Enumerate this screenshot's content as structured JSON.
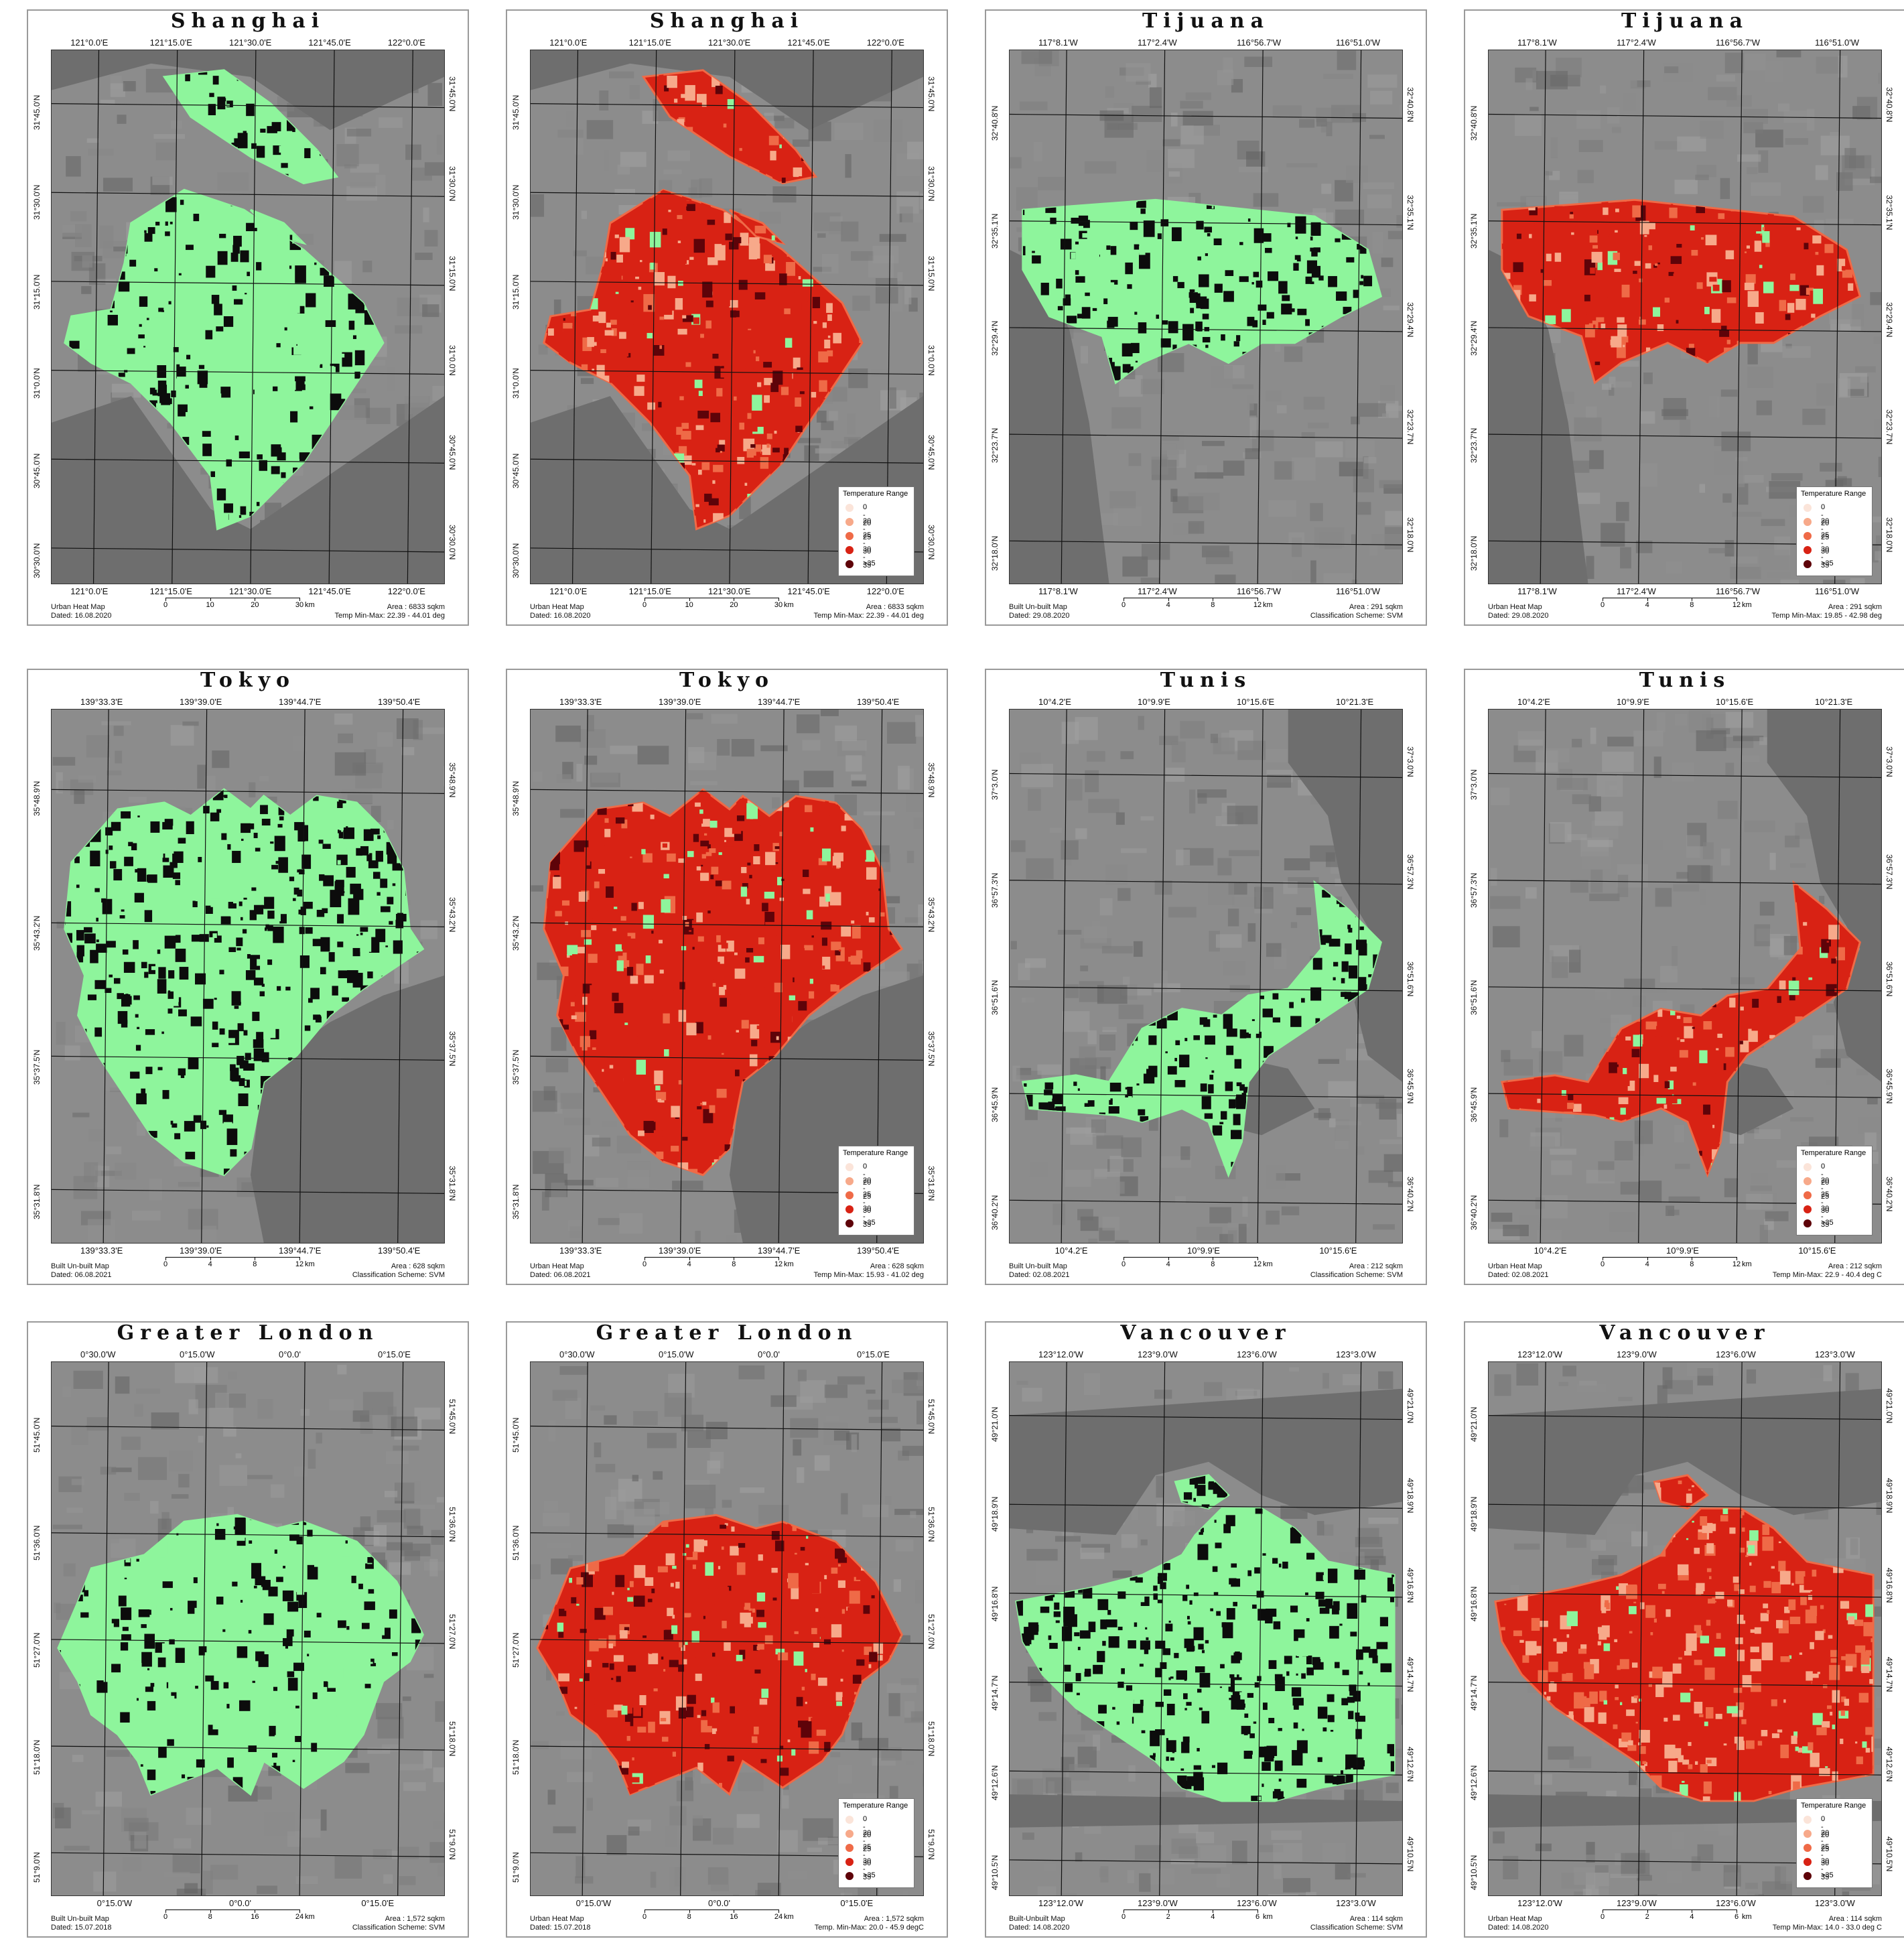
{
  "colors": {
    "unbuilt": "#8ef59c",
    "built": "#0c0c0c",
    "heat": [
      "#fbe4d9",
      "#f7a98a",
      "#ef6a47",
      "#d82214",
      "#5e0309"
    ],
    "water": "#6e6e6e",
    "land": "#8c8c8c"
  },
  "panels": [
    {
      "title": "Shanghai",
      "top_labels": [
        "121°0.0'E",
        "121°15.0'E",
        "121°30.0'E",
        "121°45.0'E",
        "122°0.0'E"
      ],
      "bottom_labels": [
        "121°0.0'E",
        "121°15.0'E",
        "121°30.0'E",
        "121°45.0'E",
        "122°0.0'E"
      ],
      "left_labels": [
        "31°45.0'N",
        "31°30.0'N",
        "31°15.0'N",
        "31°0.0'N",
        "30°45.0'N",
        "30°30.0'N"
      ],
      "right_labels": [
        "31°45.0'N",
        "31°30.0'N",
        "31°15.0'N",
        "31°0.0'N",
        "30°45.0'N",
        "30°30.0'N"
      ],
      "foot_left": [
        "Urban Heat Map",
        "Dated: 16.08.2020"
      ],
      "foot_right": [
        "Area : 6833 sqkm",
        "Temp Min-Max: 22.39 - 44.01 deg"
      ],
      "scale": [
        "0",
        "10",
        "20",
        "30"
      ],
      "scale_unit": "km"
    },
    {
      "title": "Shanghai",
      "top_labels": [
        "121°0.0'E",
        "121°15.0'E",
        "121°30.0'E",
        "121°45.0'E",
        "122°0.0'E"
      ],
      "bottom_labels": [
        "121°0.0'E",
        "121°15.0'E",
        "121°30.0'E",
        "121°45.0'E",
        "122°0.0'E"
      ],
      "left_labels": [
        "31°45.0'N",
        "31°30.0'N",
        "31°15.0'N",
        "31°0.0'N",
        "30°45.0'N",
        "30°30.0'N"
      ],
      "right_labels": [
        "31°45.0'N",
        "31°30.0'N",
        "31°15.0'N",
        "31°0.0'N",
        "30°45.0'N",
        "30°30.0'N"
      ],
      "foot_left": [
        "Urban Heat Map",
        "Dated: 16.08.2020"
      ],
      "foot_right": [
        "Area : 6833 sqkm",
        "Temp Min-Max: 22.39 - 44.01 deg"
      ],
      "scale": [
        "0",
        "10",
        "20",
        "30"
      ],
      "scale_unit": "km",
      "legend": {
        "title": "Temperature Range",
        "items": [
          "0 - 20",
          "20 - 25",
          "25 - 30",
          "30 - 35",
          ">35"
        ]
      }
    },
    {
      "title": "Tijuana",
      "top_labels": [
        "117°8.1'W",
        "117°2.4'W",
        "116°56.7'W",
        "116°51.0'W"
      ],
      "bottom_labels": [
        "117°8.1'W",
        "117°2.4'W",
        "116°56.7'W",
        "116°51.0'W"
      ],
      "left_labels": [
        "32°40.8'N",
        "32°35.1'N",
        "32°29.4'N",
        "32°23.7'N",
        "32°18.0'N"
      ],
      "right_labels": [
        "32°40.8'N",
        "32°35.1'N",
        "32°29.4'N",
        "32°23.7'N",
        "32°18.0'N"
      ],
      "foot_left": [
        "Built Un-built Map",
        "Dated: 29.08.2020"
      ],
      "foot_right": [
        "Area : 291 sqkm",
        "Classification Scheme: SVM"
      ],
      "scale": [
        "0",
        "4",
        "8",
        "12"
      ],
      "scale_unit": "km"
    },
    {
      "title": "Tijuana",
      "top_labels": [
        "117°8.1'W",
        "117°2.4'W",
        "116°56.7'W",
        "116°51.0'W"
      ],
      "bottom_labels": [
        "117°8.1'W",
        "117°2.4'W",
        "116°56.7'W",
        "116°51.0'W"
      ],
      "left_labels": [
        "32°40.8'N",
        "32°35.1'N",
        "32°29.4'N",
        "32°23.7'N",
        "32°18.0'N"
      ],
      "right_labels": [
        "32°40.8'N",
        "32°35.1'N",
        "32°29.4'N",
        "32°23.7'N",
        "32°18.0'N"
      ],
      "foot_left": [
        "Urban Heat Map",
        "Dated: 29.08.2020"
      ],
      "foot_right": [
        "Area : 291 sqkm",
        "Temp Min-Max: 19.85 - 42.98 deg"
      ],
      "scale": [
        "0",
        "4",
        "8",
        "12"
      ],
      "scale_unit": "km",
      "legend": {
        "title": "Temperature Range",
        "items": [
          "0 - 20",
          "20 - 25",
          "25 - 30",
          "30 - 35",
          ">35"
        ]
      }
    },
    {
      "title": "Tokyo",
      "top_labels": [
        "139°33.3'E",
        "139°39.0'E",
        "139°44.7'E",
        "139°50.4'E"
      ],
      "bottom_labels": [
        "139°33.3'E",
        "139°39.0'E",
        "139°44.7'E",
        "139°50.4'E"
      ],
      "left_labels": [
        "35°48.9'N",
        "35°43.2'N",
        "35°37.5'N",
        "35°31.8'N"
      ],
      "right_labels": [
        "35°48.9'N",
        "35°43.2'N",
        "35°37.5'N",
        "35°31.8'N"
      ],
      "foot_left": [
        "Built Un-built Map",
        "Dated: 06.08.2021"
      ],
      "foot_right": [
        "Area : 628 sqkm",
        "Classification Scheme: SVM"
      ],
      "scale": [
        "0",
        "4",
        "8",
        "12"
      ],
      "scale_unit": "km"
    },
    {
      "title": "Tokyo",
      "top_labels": [
        "139°33.3'E",
        "139°39.0'E",
        "139°44.7'E",
        "139°50.4'E"
      ],
      "bottom_labels": [
        "139°33.3'E",
        "139°39.0'E",
        "139°44.7'E",
        "139°50.4'E"
      ],
      "left_labels": [
        "35°48.9'N",
        "35°43.2'N",
        "35°37.5'N",
        "35°31.8'N"
      ],
      "right_labels": [
        "35°48.9'N",
        "35°43.2'N",
        "35°37.5'N",
        "35°31.8'N"
      ],
      "foot_left": [
        "Urban Heat Map",
        "Dated: 06.08.2021"
      ],
      "foot_right": [
        "Area : 628 sqkm",
        "Temp Min-Max: 15.93 - 41.02 deg"
      ],
      "scale": [
        "0",
        "4",
        "8",
        "12"
      ],
      "scale_unit": "km",
      "legend": {
        "title": "Temperature Range",
        "items": [
          "0 - 20",
          "20 - 25",
          "25 - 30",
          "30 - 35",
          ">35"
        ]
      }
    },
    {
      "title": "Tunis",
      "top_labels": [
        "10°4.2'E",
        "10°9.9'E",
        "10°15.6'E",
        "10°21.3'E"
      ],
      "bottom_labels": [
        "10°4.2'E",
        "10°9.9'E",
        "10°15.6'E"
      ],
      "left_labels": [
        "37°3.0'N",
        "36°57.3'N",
        "36°51.6'N",
        "36°45.9'N",
        "36°40.2'N"
      ],
      "right_labels": [
        "37°3.0'N",
        "36°57.3'N",
        "36°51.6'N",
        "36°45.9'N",
        "36°40.2'N"
      ],
      "foot_left": [
        "Built Un-built Map",
        "Dated: 02.08.2021"
      ],
      "foot_right": [
        "Area : 212 sqkm",
        "Classification Scheme: SVM"
      ],
      "scale": [
        "0",
        "4",
        "8",
        "12"
      ],
      "scale_unit": "km"
    },
    {
      "title": "Tunis",
      "top_labels": [
        "10°4.2'E",
        "10°9.9'E",
        "10°15.6'E",
        "10°21.3'E"
      ],
      "bottom_labels": [
        "10°4.2'E",
        "10°9.9'E",
        "10°15.6'E"
      ],
      "left_labels": [
        "37°3.0'N",
        "36°57.3'N",
        "36°51.6'N",
        "36°45.9'N",
        "36°40.2'N"
      ],
      "right_labels": [
        "37°3.0'N",
        "36°57.3'N",
        "36°51.6'N",
        "36°45.9'N",
        "36°40.2'N"
      ],
      "foot_left": [
        "Urban Heat Map",
        "Dated: 02.08.2021"
      ],
      "foot_right": [
        "Area : 212 sqkm",
        "Temp Min-Max: 22.9 - 40.4 deg C"
      ],
      "scale": [
        "0",
        "4",
        "8",
        "12"
      ],
      "scale_unit": "km",
      "legend": {
        "title": "Temperature Range",
        "items": [
          "0 - 20",
          "20 - 25",
          "25 - 30",
          "30 - 35",
          ">35"
        ]
      }
    },
    {
      "title": "Greater London",
      "top_labels": [
        "0°30.0'W",
        "0°15.0'W",
        "0°0.0'",
        "0°15.0'E"
      ],
      "bottom_labels": [
        "0°15.0'W",
        "0°0.0'",
        "0°15.0'E"
      ],
      "left_labels": [
        "51°45.0'N",
        "51°36.0'N",
        "51°27.0'N",
        "51°18.0'N",
        "51°9.0'N"
      ],
      "right_labels": [
        "51°45.0'N",
        "51°36.0'N",
        "51°27.0'N",
        "51°18.0'N",
        "51°9.0'N"
      ],
      "foot_left": [
        "Built Un-built Map",
        "Dated: 15.07.2018"
      ],
      "foot_right": [
        "Area : 1,572 sqkm",
        "Classification Scheme: SVM"
      ],
      "scale": [
        "0",
        "8",
        "16",
        "24"
      ],
      "scale_unit": "km"
    },
    {
      "title": "Greater London",
      "top_labels": [
        "0°30.0'W",
        "0°15.0'W",
        "0°0.0'",
        "0°15.0'E"
      ],
      "bottom_labels": [
        "0°15.0'W",
        "0°0.0'",
        "0°15.0'E"
      ],
      "left_labels": [
        "51°45.0'N",
        "51°36.0'N",
        "51°27.0'N",
        "51°18.0'N",
        "51°9.0'N"
      ],
      "right_labels": [
        "51°45.0'N",
        "51°36.0'N",
        "51°27.0'N",
        "51°18.0'N",
        "51°9.0'N"
      ],
      "foot_left": [
        "Urban Heat Map",
        "Dated: 15.07.2018"
      ],
      "foot_right": [
        "Area : 1,572 sqkm",
        "Temp. Min-Max: 20.0 - 45.9 degC"
      ],
      "scale": [
        "0",
        "8",
        "16",
        "24"
      ],
      "scale_unit": "km",
      "legend": {
        "title": "Temperature Range",
        "items": [
          "0 - 20",
          "20 - 25",
          "25 - 30",
          "30 - 35",
          ">35"
        ]
      }
    },
    {
      "title": "Vancouver",
      "top_labels": [
        "123°12.0'W",
        "123°9.0'W",
        "123°6.0'W",
        "123°3.0'W"
      ],
      "bottom_labels": [
        "123°12.0'W",
        "123°9.0'W",
        "123°6.0'W",
        "123°3.0'W"
      ],
      "left_labels": [
        "49°21.0'N",
        "49°18.9'N",
        "49°16.8'N",
        "49°14.7'N",
        "49°12.6'N",
        "49°10.5'N"
      ],
      "right_labels": [
        "49°21.0'N",
        "49°18.9'N",
        "49°16.8'N",
        "49°14.7'N",
        "49°12.6'N",
        "49°10.5'N"
      ],
      "foot_left": [
        "Built-Unbuilt Map",
        "Dated: 14.08.2020"
      ],
      "foot_right": [
        "Area : 114 sqkm",
        "Classification Scheme: SVM"
      ],
      "scale": [
        "0",
        "2",
        "4",
        "6"
      ],
      "scale_unit": "km"
    },
    {
      "title": "Vancouver",
      "top_labels": [
        "123°12.0'W",
        "123°9.0'W",
        "123°6.0'W",
        "123°3.0'W"
      ],
      "bottom_labels": [
        "123°12.0'W",
        "123°9.0'W",
        "123°6.0'W",
        "123°3.0'W"
      ],
      "left_labels": [
        "49°21.0'N",
        "49°18.9'N",
        "49°16.8'N",
        "49°14.7'N",
        "49°12.6'N",
        "49°10.5'N"
      ],
      "right_labels": [
        "49°21.0'N",
        "49°18.9'N",
        "49°16.8'N",
        "49°14.7'N",
        "49°12.6'N",
        "49°10.5'N"
      ],
      "foot_left": [
        "Urban Heat Map",
        "Dated: 14.08.2020"
      ],
      "foot_right": [
        "Area : 114 sqkm",
        "Temp Min-Max: 14.0 - 33.0 deg C"
      ],
      "scale": [
        "0",
        "2",
        "4",
        "6"
      ],
      "scale_unit": "km",
      "legend": {
        "title": "Temperature Range",
        "items": [
          "0 - 20",
          "20 - 25",
          "25 - 30",
          "30 - 35",
          ">35"
        ]
      }
    }
  ]
}
